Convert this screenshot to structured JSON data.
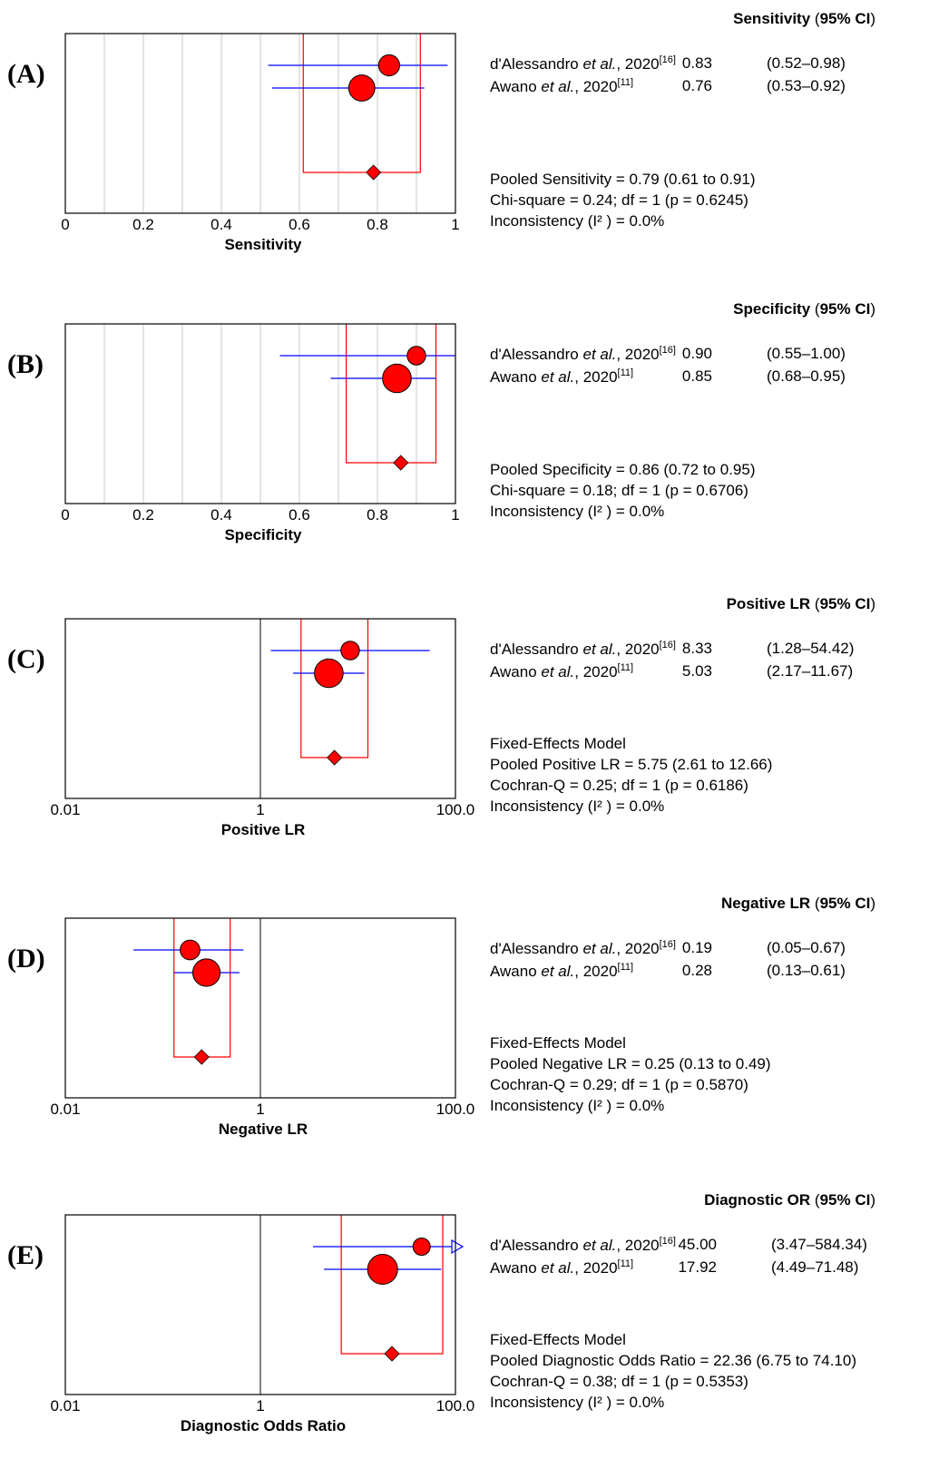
{
  "panels": [
    {
      "letter": "(A)",
      "metric": "Sensitivity",
      "ci_label": "95% CI",
      "axis_title": "Sensitivity",
      "scale": "linear",
      "ticks": [
        "0",
        "0.2",
        "0.4",
        "0.6",
        "0.8",
        "1"
      ],
      "studies": [
        {
          "author": "d'Alessandro",
          "etal": "et al.",
          "year": ", 2020",
          "ref": "[16]",
          "estimate": "0.83",
          "ci": "(0.52–0.98)"
        },
        {
          "author": "Awano",
          "etal": "et al.",
          "year": ", 2020",
          "ref": "[11]",
          "estimate": "0.76",
          "ci": "(0.53–0.92)"
        }
      ],
      "summary_lines": [
        "Pooled Sensitivity = 0.79 (0.61 to 0.91)",
        "Chi-square = 0.24; df = 1 (p = 0.6245)",
        "Inconsistency (I² ) = 0.0%"
      ]
    },
    {
      "letter": "(B)",
      "metric": "Specificity",
      "ci_label": "95% CI",
      "axis_title": "Specificity",
      "scale": "linear",
      "ticks": [
        "0",
        "0.2",
        "0.4",
        "0.6",
        "0.8",
        "1"
      ],
      "studies": [
        {
          "author": "d'Alessandro",
          "etal": "et al.",
          "year": ", 2020",
          "ref": "[16]",
          "estimate": "0.90",
          "ci": "(0.55–1.00)"
        },
        {
          "author": "Awano",
          "etal": "et al.",
          "year": ", 2020",
          "ref": "[11]",
          "estimate": "0.85",
          "ci": "(0.68–0.95)"
        }
      ],
      "summary_lines": [
        "Pooled Specificity = 0.86 (0.72 to 0.95)",
        "Chi-square = 0.18; df = 1 (p = 0.6706)",
        "Inconsistency (I² ) = 0.0%"
      ]
    },
    {
      "letter": "(C)",
      "metric": "Positive LR",
      "ci_label": "95% CI",
      "axis_title": "Positive LR",
      "scale": "log",
      "ticks": [
        "0.01",
        "1",
        "100.0"
      ],
      "studies": [
        {
          "author": "d'Alessandro",
          "etal": "et al.",
          "year": ", 2020",
          "ref": "[16]",
          "estimate": "8.33",
          "ci": "(1.28–54.42)"
        },
        {
          "author": "Awano",
          "etal": "et al.",
          "year": ", 2020",
          "ref": "[11]",
          "estimate": "5.03",
          "ci": "(2.17–11.67)"
        }
      ],
      "summary_lines": [
        "Fixed-Effects Model",
        "Pooled Positive LR = 5.75 (2.61 to 12.66)",
        "Cochran-Q = 0.25; df = 1 (p = 0.6186)",
        "Inconsistency (I² ) = 0.0%"
      ]
    },
    {
      "letter": "(D)",
      "metric": "Negative LR",
      "ci_label": "95% CI",
      "axis_title": "Negative LR",
      "scale": "log",
      "ticks": [
        "0.01",
        "1",
        "100.0"
      ],
      "studies": [
        {
          "author": "d'Alessandro",
          "etal": "et al.",
          "year": ", 2020",
          "ref": "[16]",
          "estimate": "0.19",
          "ci": "(0.05–0.67)"
        },
        {
          "author": "Awano",
          "etal": "et al.",
          "year": ", 2020",
          "ref": "[11]",
          "estimate": "0.28",
          "ci": "(0.13–0.61)"
        }
      ],
      "summary_lines": [
        "Fixed-Effects Model",
        "Pooled Negative LR = 0.25 (0.13 to 0.49)",
        "Cochran-Q = 0.29; df = 1 (p = 0.5870)",
        "Inconsistency (I² ) = 0.0%"
      ]
    },
    {
      "letter": "(E)",
      "metric": "Diagnostic OR",
      "ci_label": "95% CI",
      "axis_title": "Diagnostic Odds Ratio",
      "scale": "log",
      "ticks": [
        "0.01",
        "1",
        "100.0"
      ],
      "studies": [
        {
          "author": "d'Alessandro",
          "etal": "et al.",
          "year": ", 2020",
          "ref": "[16]",
          "estimate": "45.00",
          "ci": "(3.47–584.34)"
        },
        {
          "author": "Awano",
          "etal": "et al.",
          "year": ", 2020",
          "ref": "[11]",
          "estimate": "17.92",
          "ci": "(4.49–71.48)"
        }
      ],
      "summary_lines": [
        "Fixed-Effects Model",
        "Pooled Diagnostic Odds Ratio = 22.36 (6.75 to 74.10)",
        "Cochran-Q = 0.38; df = 1 (p = 0.5353)",
        "Inconsistency (I² ) = 0.0%"
      ]
    }
  ],
  "chart_data": [
    {
      "type": "forest",
      "scale": "linear",
      "xlim": [
        0,
        1
      ],
      "xlabel": "Sensitivity",
      "studies": [
        {
          "name": "d'Alessandro et al., 2020",
          "est": 0.83,
          "lo": 0.52,
          "hi": 0.98,
          "weight": 0.4
        },
        {
          "name": "Awano et al., 2020",
          "est": 0.76,
          "lo": 0.53,
          "hi": 0.92,
          "weight": 0.6
        }
      ],
      "pooled": {
        "est": 0.79,
        "lo": 0.61,
        "hi": 0.91
      }
    },
    {
      "type": "forest",
      "scale": "linear",
      "xlim": [
        0,
        1
      ],
      "xlabel": "Specificity",
      "studies": [
        {
          "name": "d'Alessandro et al., 2020",
          "est": 0.9,
          "lo": 0.55,
          "hi": 1.0,
          "weight": 0.3
        },
        {
          "name": "Awano et al., 2020",
          "est": 0.85,
          "lo": 0.68,
          "hi": 0.95,
          "weight": 0.7
        }
      ],
      "pooled": {
        "est": 0.86,
        "lo": 0.72,
        "hi": 0.95
      }
    },
    {
      "type": "forest",
      "scale": "log",
      "xlim": [
        0.01,
        100
      ],
      "xlabel": "Positive LR",
      "studies": [
        {
          "name": "d'Alessandro et al., 2020",
          "est": 8.33,
          "lo": 1.28,
          "hi": 54.42,
          "weight": 0.3
        },
        {
          "name": "Awano et al., 2020",
          "est": 5.03,
          "lo": 2.17,
          "hi": 11.67,
          "weight": 0.7
        }
      ],
      "pooled": {
        "est": 5.75,
        "lo": 2.61,
        "hi": 12.66
      }
    },
    {
      "type": "forest",
      "scale": "log",
      "xlim": [
        0.01,
        100
      ],
      "xlabel": "Negative LR",
      "studies": [
        {
          "name": "d'Alessandro et al., 2020",
          "est": 0.19,
          "lo": 0.05,
          "hi": 0.67,
          "weight": 0.35
        },
        {
          "name": "Awano et al., 2020",
          "est": 0.28,
          "lo": 0.13,
          "hi": 0.61,
          "weight": 0.65
        }
      ],
      "pooled": {
        "est": 0.25,
        "lo": 0.13,
        "hi": 0.49
      }
    },
    {
      "type": "forest",
      "scale": "log",
      "xlim": [
        0.01,
        100
      ],
      "xlabel": "Diagnostic Odds Ratio",
      "studies": [
        {
          "name": "d'Alessandro et al., 2020",
          "est": 45.0,
          "lo": 3.47,
          "hi": 584.34,
          "weight": 0.25
        },
        {
          "name": "Awano et al., 2020",
          "est": 17.92,
          "lo": 4.49,
          "hi": 71.48,
          "weight": 0.75
        }
      ],
      "pooled": {
        "est": 22.36,
        "lo": 6.75,
        "hi": 74.1
      }
    }
  ],
  "colors": {
    "marker": "#ff0000",
    "ci_line": "#0000ff",
    "pooled_box": "#ff0000",
    "grid": "#c8c8c8"
  }
}
